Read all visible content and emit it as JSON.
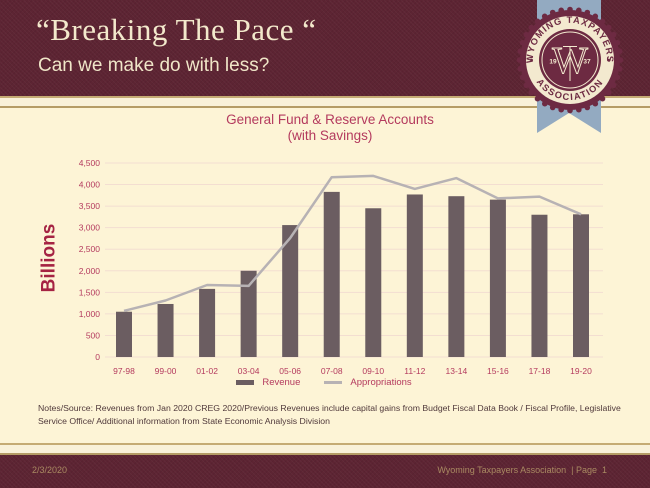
{
  "header": {
    "title": "“Breaking The Pace “",
    "subtitle": "Can we make do with less?"
  },
  "badge": {
    "arc_top": "WYOMING TAXPAYERS",
    "arc_bottom": "ASSOCIATION",
    "year_left": "19",
    "year_right": "37",
    "monogram": "WTA"
  },
  "chart_data": {
    "type": "bar+line",
    "title": "General Fund & Reserve Accounts",
    "subtitle": "(with Savings)",
    "ylabel": "Billions",
    "categories": [
      "97-98",
      "99-00",
      "01-02",
      "03-04",
      "05-06",
      "07-08",
      "09-10",
      "11-12",
      "13-14",
      "15-16",
      "17-18",
      "19-20"
    ],
    "series": [
      {
        "name": "Revenue",
        "type": "bar",
        "values": [
          1050,
          1230,
          1580,
          2000,
          3060,
          3830,
          3450,
          3770,
          3730,
          3650,
          3300,
          3310
        ]
      },
      {
        "name": "Appropriations",
        "type": "line",
        "values": [
          1070,
          1310,
          1670,
          1650,
          2760,
          4170,
          4200,
          3900,
          4150,
          3680,
          3720,
          3310
        ]
      }
    ],
    "ylim": [
      0,
      4500
    ],
    "ytick_step": 500,
    "grid": true,
    "legend_position": "bottom"
  },
  "colors": {
    "maroon": "#5d2433",
    "cream_bg": "#fdf4d6",
    "accent_crimson": "#b43a5e",
    "axis_title": "#a52343",
    "bar": "#6b5d61",
    "line": "#b7b2b4",
    "gridline": "#f3ded1",
    "ribbon_blue": "#93aac1",
    "seal_maroon": "#6d2a42",
    "seal_cream": "#f3e9cf",
    "footer_text": "#a98a62"
  },
  "notes": "Notes/Source: Revenues from Jan 2020 CREG 2020/Previous Revenues include capital gains from Budget Fiscal Data Book / Fiscal Profile, Legislative Service Office/ Additional information from State Economic Analysis Division",
  "footer": {
    "date": "2/3/2020",
    "right": "Wyoming Taxpayers Association  | Page  1"
  }
}
